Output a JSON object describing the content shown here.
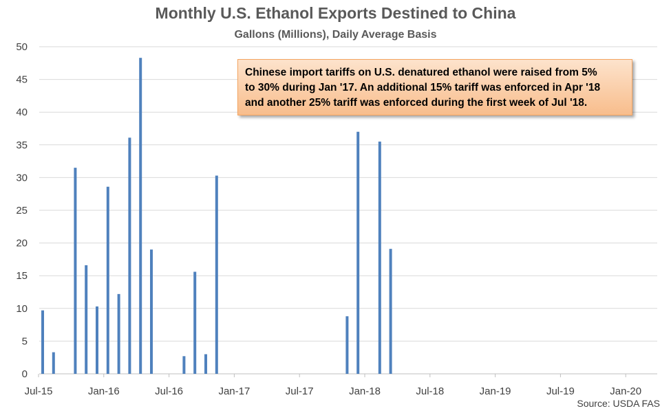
{
  "chart_data": {
    "type": "bar",
    "title": "Monthly U.S. Ethanol Exports Destined to China",
    "subtitle": "Gallons (Millions), Daily Average Basis",
    "ylim": [
      0,
      50
    ],
    "yticks": [
      0,
      5,
      10,
      15,
      20,
      25,
      30,
      35,
      40,
      45,
      50
    ],
    "xticks": [
      "Jul-15",
      "Jan-16",
      "Jul-16",
      "Jan-17",
      "Jul-17",
      "Jan-18",
      "Jul-18",
      "Jan-19",
      "Jul-19",
      "Jan-20"
    ],
    "grid": true,
    "bar_color": "#4f81bd",
    "series": [
      {
        "values": [
          {
            "month": "Jul-15",
            "value": 9.7
          },
          {
            "month": "Aug-15",
            "value": 3.3
          },
          {
            "month": "Oct-15",
            "value": 31.5
          },
          {
            "month": "Nov-15",
            "value": 16.6
          },
          {
            "month": "Dec-15",
            "value": 10.3
          },
          {
            "month": "Jan-16",
            "value": 28.6
          },
          {
            "month": "Feb-16",
            "value": 12.2
          },
          {
            "month": "Mar-16",
            "value": 36.1
          },
          {
            "month": "Apr-16",
            "value": 48.3
          },
          {
            "month": "May-16",
            "value": 19.0
          },
          {
            "month": "Aug-16",
            "value": 2.7
          },
          {
            "month": "Sep-16",
            "value": 15.6
          },
          {
            "month": "Oct-16",
            "value": 3.0
          },
          {
            "month": "Nov-16",
            "value": 30.3
          },
          {
            "month": "Nov-17",
            "value": 8.8
          },
          {
            "month": "Dec-17",
            "value": 37.0
          },
          {
            "month": "Feb-18",
            "value": 35.5
          },
          {
            "month": "Mar-18",
            "value": 19.1
          }
        ]
      }
    ],
    "annotation": [
      "Chinese import tariffs on U.S. denatured ethanol were raised from 5%",
      "to 30% during Jan '17. An additional 15% tariff was enforced in Apr '18",
      "and another 25% tariff was enforced during the first week of Jul '18."
    ],
    "source": "Source: USDA FAS"
  }
}
